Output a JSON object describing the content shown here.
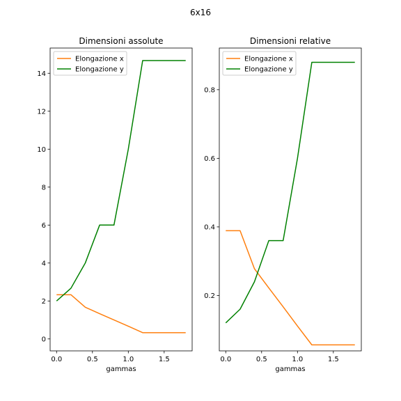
{
  "figure": {
    "suptitle": "6x16"
  },
  "colors": {
    "x_series": "#ff7f0e",
    "y_series": "#008000",
    "axes": "#000000",
    "legend_border": "#cccccc"
  },
  "chart_data": [
    {
      "type": "line",
      "title": "Dimensioni assolute",
      "xlabel": "gammas",
      "ylabel": "",
      "xlim": [
        -0.09,
        1.89
      ],
      "ylim": [
        -0.63,
        15.33
      ],
      "xticks": [
        0.0,
        0.5,
        1.0,
        1.5
      ],
      "xtick_labels": [
        "0.0",
        "0.5",
        "1.0",
        "1.5"
      ],
      "yticks": [
        0,
        2,
        4,
        6,
        8,
        10,
        12,
        14
      ],
      "ytick_labels": [
        "0",
        "2",
        "4",
        "6",
        "8",
        "10",
        "12",
        "14"
      ],
      "grid": false,
      "legend_position": "upper left",
      "x": [
        0.0,
        0.2,
        0.4,
        0.6,
        0.8,
        1.0,
        1.2,
        1.4,
        1.6,
        1.8
      ],
      "series": [
        {
          "name": "Elongazione x",
          "color": "#ff7f0e",
          "values": [
            2.33,
            2.33,
            1.67,
            1.33,
            1.0,
            0.67,
            0.33,
            0.33,
            0.33,
            0.33
          ]
        },
        {
          "name": "Elongazione y",
          "color": "#008000",
          "values": [
            2.0,
            2.67,
            4.0,
            6.0,
            6.0,
            10.0,
            14.67,
            14.67,
            14.67,
            14.67
          ]
        }
      ]
    },
    {
      "type": "line",
      "title": "Dimensioni relative",
      "xlabel": "gammas",
      "ylabel": "",
      "xlim": [
        -0.09,
        1.89
      ],
      "ylim": [
        0.0385,
        0.9215
      ],
      "xticks": [
        0.0,
        0.5,
        1.0,
        1.5
      ],
      "xtick_labels": [
        "0.0",
        "0.5",
        "1.0",
        "1.5"
      ],
      "yticks": [
        0.2,
        0.4,
        0.6,
        0.8
      ],
      "ytick_labels": [
        "0.2",
        "0.4",
        "0.6",
        "0.8"
      ],
      "grid": false,
      "legend_position": "upper left",
      "x": [
        0.0,
        0.2,
        0.4,
        0.6,
        0.8,
        1.0,
        1.2,
        1.4,
        1.6,
        1.8
      ],
      "series": [
        {
          "name": "Elongazione x",
          "color": "#ff7f0e",
          "values": [
            0.389,
            0.389,
            0.278,
            0.222,
            0.167,
            0.111,
            0.056,
            0.056,
            0.056,
            0.056
          ]
        },
        {
          "name": "Elongazione y",
          "color": "#008000",
          "values": [
            0.12,
            0.16,
            0.24,
            0.36,
            0.36,
            0.6,
            0.88,
            0.88,
            0.88,
            0.88
          ]
        }
      ]
    }
  ]
}
